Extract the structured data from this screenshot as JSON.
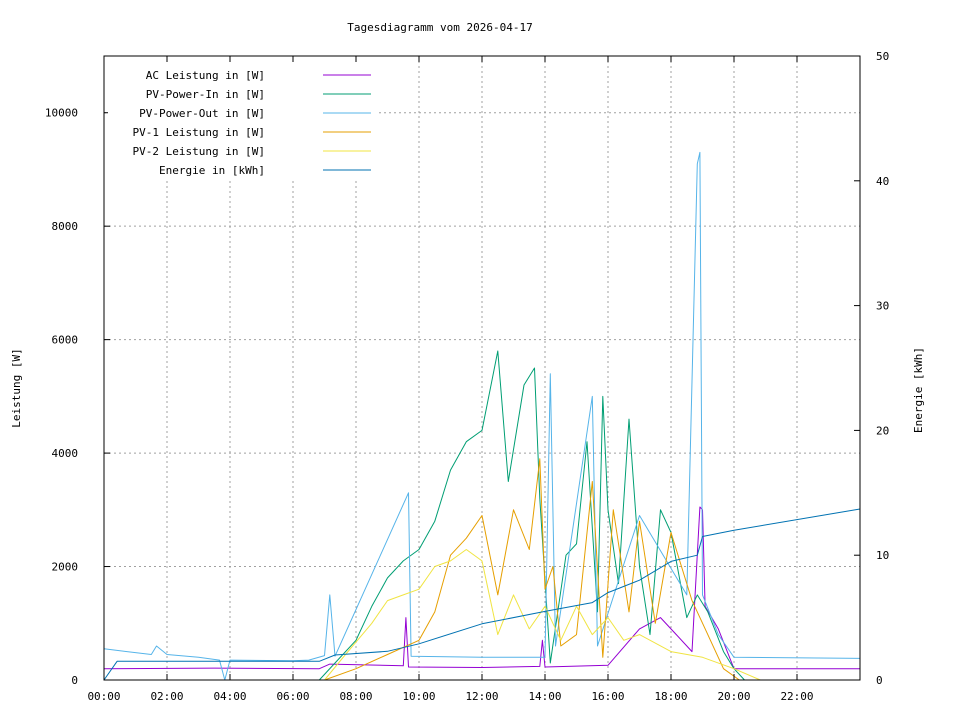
{
  "chart_data": {
    "type": "line",
    "title": "Tagesdiagramm vom 2026-04-17",
    "ylabel": "Leistung [W]",
    "y2label": "Energie [kWh]",
    "xlim": [
      "00:00",
      "24:00"
    ],
    "ylim": [
      0,
      11000
    ],
    "y2lim": [
      0,
      50
    ],
    "x_ticks": [
      "00:00",
      "02:00",
      "04:00",
      "06:00",
      "08:00",
      "10:00",
      "12:00",
      "14:00",
      "16:00",
      "18:00",
      "20:00",
      "22:00"
    ],
    "y_ticks": [
      "0",
      "2000",
      "4000",
      "6000",
      "8000",
      "10000"
    ],
    "y2_ticks": [
      "0",
      "10",
      "20",
      "30",
      "40",
      "50"
    ],
    "grid": true,
    "legend_position": "top-left",
    "series": [
      {
        "name": "AC Leistung in [W]",
        "color": "#9400d3",
        "axis": "left",
        "points": [
          [
            "00:00",
            200
          ],
          [
            "03:30",
            210
          ],
          [
            "06:50",
            200
          ],
          [
            "07:10",
            280
          ],
          [
            "09:30",
            250
          ],
          [
            "09:35",
            1100
          ],
          [
            "09:40",
            230
          ],
          [
            "12:00",
            220
          ],
          [
            "13:50",
            240
          ],
          [
            "13:55",
            700
          ],
          [
            "14:00",
            230
          ],
          [
            "16:00",
            260
          ],
          [
            "17:00",
            900
          ],
          [
            "17:40",
            1100
          ],
          [
            "18:10",
            800
          ],
          [
            "18:40",
            500
          ],
          [
            "18:55",
            3050
          ],
          [
            "19:00",
            3000
          ],
          [
            "19:05",
            1300
          ],
          [
            "19:30",
            900
          ],
          [
            "20:00",
            200
          ],
          [
            "24:00",
            200
          ]
        ]
      },
      {
        "name": "PV-Power-In in [W]",
        "color": "#009e73",
        "axis": "left",
        "points": [
          [
            "06:50",
            0
          ],
          [
            "07:20",
            300
          ],
          [
            "08:00",
            700
          ],
          [
            "08:30",
            1300
          ],
          [
            "09:00",
            1800
          ],
          [
            "09:30",
            2100
          ],
          [
            "10:00",
            2300
          ],
          [
            "10:30",
            2800
          ],
          [
            "11:00",
            3700
          ],
          [
            "11:30",
            4200
          ],
          [
            "12:00",
            4400
          ],
          [
            "12:30",
            5800
          ],
          [
            "12:50",
            3500
          ],
          [
            "13:20",
            5200
          ],
          [
            "13:40",
            5500
          ],
          [
            "13:50",
            3200
          ],
          [
            "14:10",
            300
          ],
          [
            "14:40",
            2200
          ],
          [
            "15:00",
            2400
          ],
          [
            "15:20",
            4200
          ],
          [
            "15:40",
            1200
          ],
          [
            "15:50",
            5000
          ],
          [
            "16:00",
            3000
          ],
          [
            "16:20",
            1700
          ],
          [
            "16:40",
            4600
          ],
          [
            "17:00",
            2000
          ],
          [
            "17:20",
            800
          ],
          [
            "17:40",
            3000
          ],
          [
            "18:00",
            2600
          ],
          [
            "18:30",
            1100
          ],
          [
            "18:50",
            1500
          ],
          [
            "19:10",
            1200
          ],
          [
            "19:40",
            500
          ],
          [
            "20:00",
            200
          ],
          [
            "20:20",
            0
          ]
        ]
      },
      {
        "name": "PV-Power-Out in [W]",
        "color": "#56b4e9",
        "axis": "left",
        "points": [
          [
            "00:00",
            550
          ],
          [
            "01:30",
            450
          ],
          [
            "01:40",
            600
          ],
          [
            "02:00",
            450
          ],
          [
            "03:00",
            400
          ],
          [
            "03:40",
            350
          ],
          [
            "03:50",
            0
          ],
          [
            "04:00",
            350
          ],
          [
            "06:00",
            340
          ],
          [
            "06:30",
            350
          ],
          [
            "07:00",
            430
          ],
          [
            "07:10",
            1500
          ],
          [
            "07:20",
            420
          ],
          [
            "09:40",
            3300
          ],
          [
            "09:45",
            420
          ],
          [
            "12:00",
            400
          ],
          [
            "14:00",
            400
          ],
          [
            "14:10",
            5400
          ],
          [
            "14:20",
            600
          ],
          [
            "15:30",
            5000
          ],
          [
            "15:40",
            600
          ],
          [
            "17:00",
            2900
          ],
          [
            "18:30",
            1500
          ],
          [
            "18:50",
            9100
          ],
          [
            "18:55",
            9300
          ],
          [
            "19:00",
            1500
          ],
          [
            "19:30",
            800
          ],
          [
            "20:00",
            400
          ],
          [
            "24:00",
            380
          ]
        ]
      },
      {
        "name": "PV-1 Leistung in [W]",
        "color": "#e69f00",
        "axis": "left",
        "points": [
          [
            "07:00",
            0
          ],
          [
            "08:00",
            200
          ],
          [
            "09:00",
            450
          ],
          [
            "10:00",
            700
          ],
          [
            "10:30",
            1200
          ],
          [
            "11:00",
            2200
          ],
          [
            "11:30",
            2500
          ],
          [
            "12:00",
            2900
          ],
          [
            "12:30",
            1500
          ],
          [
            "13:00",
            3000
          ],
          [
            "13:30",
            2300
          ],
          [
            "13:50",
            3900
          ],
          [
            "14:00",
            1600
          ],
          [
            "14:15",
            2000
          ],
          [
            "14:30",
            600
          ],
          [
            "15:00",
            800
          ],
          [
            "15:30",
            3500
          ],
          [
            "15:50",
            400
          ],
          [
            "16:10",
            3000
          ],
          [
            "16:40",
            1200
          ],
          [
            "17:00",
            2800
          ],
          [
            "17:30",
            1000
          ],
          [
            "18:00",
            2600
          ],
          [
            "18:40",
            1400
          ],
          [
            "19:10",
            800
          ],
          [
            "19:40",
            200
          ],
          [
            "20:10",
            0
          ]
        ]
      },
      {
        "name": "PV-2 Leistung in [W]",
        "color": "#f0e442",
        "axis": "left",
        "points": [
          [
            "07:00",
            0
          ],
          [
            "07:40",
            450
          ],
          [
            "08:30",
            1000
          ],
          [
            "09:00",
            1400
          ],
          [
            "09:30",
            1500
          ],
          [
            "10:00",
            1600
          ],
          [
            "10:30",
            2000
          ],
          [
            "11:00",
            2100
          ],
          [
            "11:30",
            2300
          ],
          [
            "12:00",
            2100
          ],
          [
            "12:30",
            800
          ],
          [
            "13:00",
            1500
          ],
          [
            "13:30",
            900
          ],
          [
            "14:00",
            1300
          ],
          [
            "14:30",
            700
          ],
          [
            "15:00",
            1300
          ],
          [
            "15:30",
            800
          ],
          [
            "16:00",
            1100
          ],
          [
            "16:30",
            700
          ],
          [
            "17:00",
            800
          ],
          [
            "18:00",
            500
          ],
          [
            "19:00",
            400
          ],
          [
            "20:00",
            200
          ],
          [
            "20:50",
            0
          ]
        ]
      },
      {
        "name": "Energie in [kWh]",
        "color": "#0072b2",
        "axis": "right",
        "points": [
          [
            "00:00",
            0
          ],
          [
            "00:25",
            1.5
          ],
          [
            "06:50",
            1.5
          ],
          [
            "07:20",
            2
          ],
          [
            "09:00",
            2.3
          ],
          [
            "10:00",
            2.9
          ],
          [
            "12:00",
            4.5
          ],
          [
            "14:00",
            5.5
          ],
          [
            "15:30",
            6.2
          ],
          [
            "16:00",
            7
          ],
          [
            "17:00",
            8
          ],
          [
            "18:00",
            9.5
          ],
          [
            "18:50",
            10
          ],
          [
            "19:00",
            11.5
          ],
          [
            "20:00",
            12
          ],
          [
            "24:00",
            13.7
          ]
        ]
      }
    ]
  }
}
